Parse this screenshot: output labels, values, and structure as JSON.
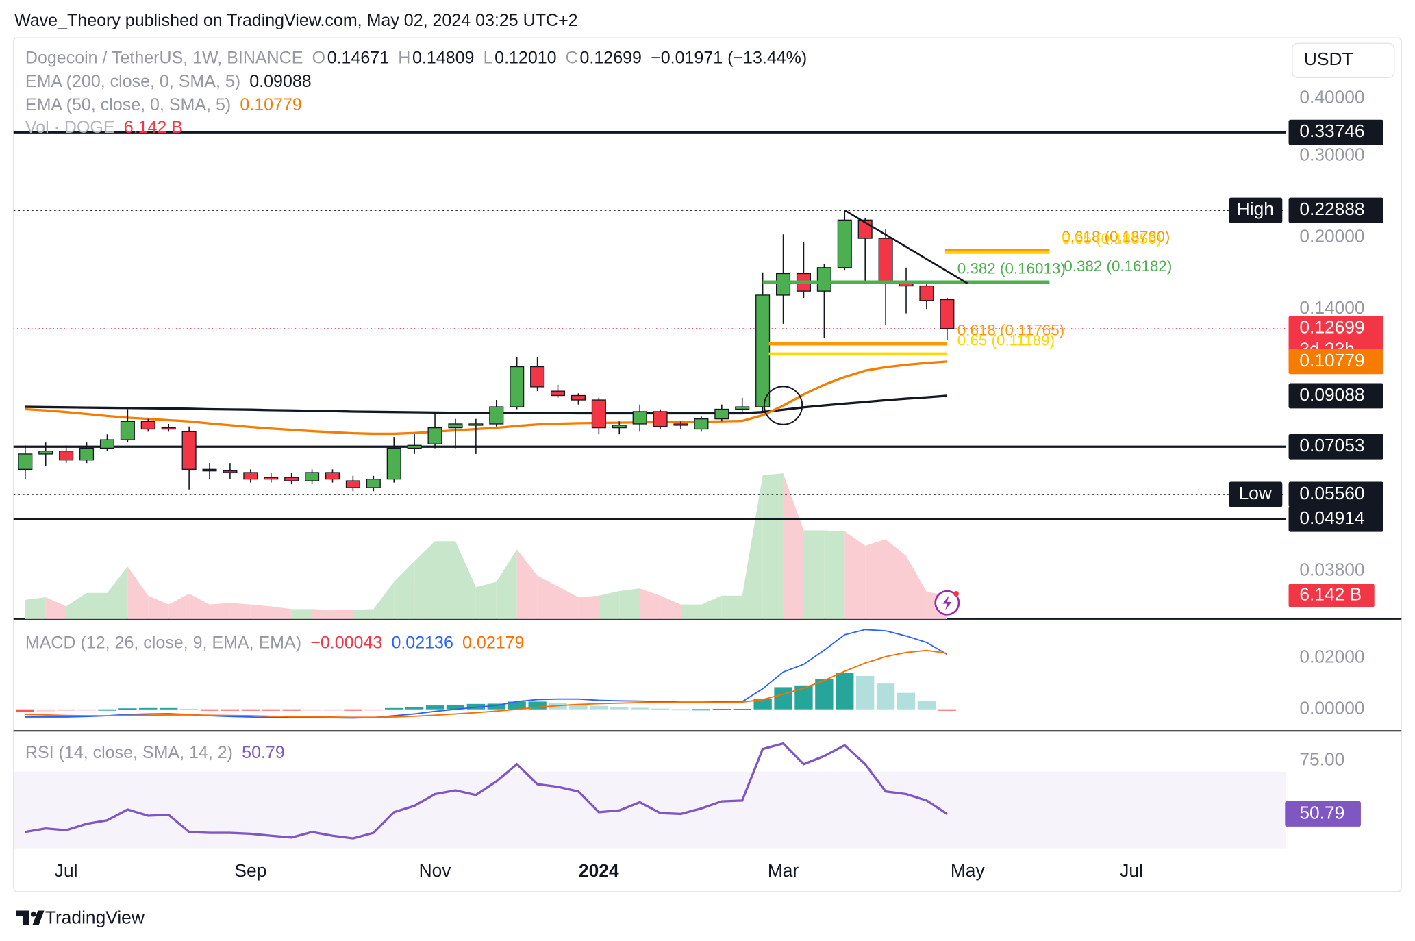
{
  "header": {
    "text": "Wave_Theory published on TradingView.com, May 02, 2024 03:25 UTC+2"
  },
  "footer": {
    "brand": "TradingView"
  },
  "chart_data": {
    "type": "candlestick",
    "log": true,
    "grid": false,
    "legend": {
      "symbol": "Dogecoin / TetherUS, 1W, BINANCE",
      "keys": [
        "O",
        "H",
        "L",
        "C"
      ],
      "readout": [
        "0.14671",
        "0.14809",
        "0.12010",
        "0.12699"
      ],
      "change": "−0.01971 (−13.44%)"
    },
    "currency": "USDT",
    "countdown": "3d 23h",
    "up_color": "#4caf50",
    "down_color": "#f23645",
    "xlim": [
      -0.57,
      61.54
    ],
    "xticks": [
      {
        "value": 2,
        "label": "Jul"
      },
      {
        "value": 11,
        "label": "Sep"
      },
      {
        "value": 20,
        "label": "Nov"
      },
      {
        "value": 28,
        "label": "2024",
        "bold": true
      },
      {
        "value": 37,
        "label": "Mar"
      },
      {
        "value": 46,
        "label": "May"
      },
      {
        "value": 54,
        "label": "Jul"
      }
    ],
    "ylim": [
      0.0299,
      0.54
    ],
    "yticks": [
      {
        "value": 0.4,
        "label": "0.40000"
      },
      {
        "value": 0.3,
        "label": "0.30000"
      },
      {
        "value": 0.2,
        "label": "0.20000"
      },
      {
        "value": 0.14,
        "label": "0.14000"
      },
      {
        "value": 0.038,
        "label": "0.03800"
      }
    ],
    "open": [
      0.063,
      0.068,
      0.069,
      0.066,
      0.07,
      0.073,
      0.08,
      0.0775,
      0.076,
      0.063,
      0.0625,
      0.062,
      0.0605,
      0.0605,
      0.0595,
      0.062,
      0.0595,
      0.0575,
      0.06,
      0.07,
      0.0715,
      0.0775,
      0.0785,
      0.079,
      0.086,
      0.105,
      0.093,
      0.091,
      0.089,
      0.0775,
      0.079,
      0.084,
      0.079,
      0.077,
      0.081,
      0.085,
      0.086,
      0.15,
      0.167,
      0.153,
      0.172,
      0.218,
      0.199,
      0.16,
      0.157,
      0.14671
    ],
    "high": [
      0.071,
      0.072,
      0.071,
      0.072,
      0.075,
      0.085,
      0.081,
      0.079,
      0.078,
      0.065,
      0.065,
      0.063,
      0.062,
      0.062,
      0.063,
      0.063,
      0.061,
      0.061,
      0.074,
      0.075,
      0.083,
      0.081,
      0.081,
      0.089,
      0.11,
      0.11,
      0.096,
      0.092,
      0.09,
      0.08,
      0.087,
      0.085,
      0.08,
      0.082,
      0.087,
      0.09,
      0.168,
      0.203,
      0.195,
      0.175,
      0.2289,
      0.22,
      0.208,
      0.172,
      0.16,
      0.14809
    ],
    "low": [
      0.06,
      0.064,
      0.065,
      0.065,
      0.069,
      0.072,
      0.076,
      0.076,
      0.057,
      0.06,
      0.06,
      0.059,
      0.059,
      0.0585,
      0.0585,
      0.059,
      0.0565,
      0.0565,
      0.059,
      0.068,
      0.07,
      0.07,
      0.068,
      0.078,
      0.085,
      0.093,
      0.09,
      0.087,
      0.075,
      0.075,
      0.076,
      0.077,
      0.077,
      0.076,
      0.08,
      0.084,
      0.084,
      0.13,
      0.148,
      0.121,
      0.17,
      0.16,
      0.129,
      0.137,
      0.14,
      0.1201
    ],
    "close": [
      0.068,
      0.069,
      0.066,
      0.07,
      0.073,
      0.08,
      0.077,
      0.077,
      0.063,
      0.0625,
      0.062,
      0.06,
      0.06,
      0.0595,
      0.062,
      0.06,
      0.0575,
      0.06,
      0.07,
      0.071,
      0.0775,
      0.079,
      0.079,
      0.086,
      0.105,
      0.095,
      0.091,
      0.089,
      0.0775,
      0.0785,
      0.084,
      0.078,
      0.0785,
      0.081,
      0.085,
      0.086,
      0.15,
      0.167,
      0.153,
      0.172,
      0.218,
      0.199,
      0.16,
      0.157,
      0.146,
      0.12699
    ],
    "series": [
      {
        "name": "EMA (200, close, 0, SMA, 5)",
        "color": "#131722",
        "values": [
          0.086,
          0.0859,
          0.0858,
          0.0857,
          0.0856,
          0.0855,
          0.0854,
          0.0853,
          0.0852,
          0.085,
          0.0849,
          0.0848,
          0.0846,
          0.0845,
          0.0843,
          0.0842,
          0.084,
          0.0839,
          0.0838,
          0.0837,
          0.0836,
          0.0835,
          0.0834,
          0.0834,
          0.0834,
          0.0834,
          0.0834,
          0.0833,
          0.0833,
          0.0833,
          0.0833,
          0.0833,
          0.0833,
          0.0833,
          0.0833,
          0.0833,
          0.0838,
          0.0848,
          0.0858,
          0.0866,
          0.0874,
          0.0881,
          0.0889,
          0.0896,
          0.0902,
          0.09088
        ]
      },
      {
        "name": "EMA (50, close, 0, SMA, 5)",
        "color": "#f57c00",
        "values": [
          0.085,
          0.0845,
          0.0838,
          0.083,
          0.0822,
          0.0815,
          0.081,
          0.0805,
          0.08,
          0.0792,
          0.0785,
          0.0778,
          0.0772,
          0.0767,
          0.0762,
          0.0758,
          0.0754,
          0.0752,
          0.0752,
          0.0755,
          0.076,
          0.0765,
          0.077,
          0.0775,
          0.0782,
          0.0788,
          0.0791,
          0.0793,
          0.0794,
          0.0795,
          0.0796,
          0.0797,
          0.0798,
          0.0799,
          0.08,
          0.0802,
          0.0825,
          0.0865,
          0.0915,
          0.096,
          0.0998,
          0.103,
          0.1048,
          0.106,
          0.107,
          0.10779
        ]
      }
    ],
    "volume": {
      "name": "Vol · DOGE",
      "vlim": [
        0,
        40
      ],
      "up_color": "#c8e6c9",
      "down_color": "#facdd2",
      "values": [
        5.0,
        5.7,
        3.3,
        6.8,
        6.8,
        13.7,
        6.1,
        3.8,
        6.6,
        3.8,
        4.2,
        3.8,
        3.3,
        2.6,
        2.6,
        2.4,
        2.4,
        2.6,
        9.7,
        15.1,
        20.3,
        20.3,
        8.3,
        9.7,
        18.2,
        11.3,
        8.5,
        5.7,
        6.1,
        7.3,
        8.0,
        6.1,
        3.8,
        3.8,
        6.1,
        6.1,
        37.5,
        38.0,
        23.1,
        23.1,
        22.9,
        19.1,
        20.8,
        16.5,
        7.1,
        6.142
      ],
      "value_label": "6.142 B"
    },
    "levels": [
      {
        "value": 0.33746,
        "style": "solid"
      },
      {
        "name": "High",
        "value": 0.22888,
        "style": "dotted"
      },
      {
        "value": 0.07053,
        "style": "solid"
      },
      {
        "name": "Low",
        "value": 0.0556,
        "label": "0.05560",
        "style": "dotted"
      },
      {
        "value": 0.04914,
        "style": "solid"
      }
    ],
    "fibs": [
      {
        "text": "0.382 (0.16013)",
        "value": 0.16013,
        "color": "#4caf50",
        "from": 36.0,
        "to": 50.0,
        "text_x": 45.5
      },
      {
        "text": "0.382 (0.16182)",
        "value": 0.16182,
        "color": "#4caf50",
        "text_x": 50.7
      },
      {
        "text": "0.618 (0.18760)",
        "value": 0.1876,
        "color": "#ff9800",
        "from": 44.9,
        "to": 50.0,
        "text_x": 50.6
      },
      {
        "text": "0.65 (0.18556)",
        "value": 0.18556,
        "color": "#ffd600",
        "from": 44.9,
        "to": 50.0,
        "text_x": 50.6
      },
      {
        "text": "0.618 (0.11765)",
        "value": 0.11765,
        "color": "#ff9800",
        "from": 36.3,
        "to": 45.0,
        "text_x": 45.5
      },
      {
        "text": "0.65 (0.11189)",
        "value": 0.11189,
        "color": "#ffd600",
        "from": 36.3,
        "to": 45.0,
        "text_x": 45.5
      }
    ],
    "trendline": {
      "x": [
        40,
        46
      ],
      "values": [
        0.2289,
        0.159
      ]
    },
    "circle": {
      "x": 37,
      "value": 0.0866
    },
    "macd": {
      "name": "MACD (12, 26, close, 9, EMA, EMA)",
      "ylim": [
        -0.0077,
        0.0337
      ],
      "yticks": [
        {
          "value": 0.02,
          "label": "0.02000"
        },
        {
          "value": 0,
          "label": "0.00000"
        }
      ],
      "macd_color": "#2962ff",
      "signal_color": "#ff6d00",
      "hist_label": "−0.00043",
      "macd": [
        -0.003,
        -0.003,
        -0.003,
        -0.0028,
        -0.0025,
        -0.002,
        -0.0018,
        -0.0017,
        -0.002,
        -0.0025,
        -0.0028,
        -0.003,
        -0.0032,
        -0.0033,
        -0.0033,
        -0.0033,
        -0.0034,
        -0.0032,
        -0.0025,
        -0.0018,
        -0.0008,
        0.0,
        0.0008,
        0.0015,
        0.003,
        0.0038,
        0.004,
        0.004,
        0.0035,
        0.0033,
        0.0032,
        0.003,
        0.0028,
        0.0028,
        0.0029,
        0.003,
        0.008,
        0.0145,
        0.0175,
        0.023,
        0.029,
        0.031,
        0.0305,
        0.0285,
        0.026,
        0.02136
      ],
      "signal": [
        -0.002,
        -0.0022,
        -0.0024,
        -0.0025,
        -0.0025,
        -0.0024,
        -0.0023,
        -0.0022,
        -0.0022,
        -0.0023,
        -0.0024,
        -0.0025,
        -0.0027,
        -0.0028,
        -0.0029,
        -0.003,
        -0.0031,
        -0.0031,
        -0.003,
        -0.0027,
        -0.0023,
        -0.0018,
        -0.0013,
        -0.0007,
        0.0,
        0.0008,
        0.0014,
        0.0019,
        0.0022,
        0.0024,
        0.0026,
        0.0027,
        0.0027,
        0.0027,
        0.0027,
        0.0028,
        0.0038,
        0.0059,
        0.0082,
        0.0112,
        0.0148,
        0.018,
        0.0205,
        0.0221,
        0.0229,
        0.02179
      ],
      "hist": [
        -0.001,
        -0.0008,
        -0.0006,
        -0.0003,
        0.0,
        0.0004,
        0.0005,
        0.0005,
        0.0002,
        -0.0002,
        -0.0004,
        -0.0005,
        -0.0005,
        -0.0005,
        -0.0004,
        -0.0003,
        -0.0003,
        -0.0001,
        0.0005,
        0.0009,
        0.0015,
        0.0018,
        0.0021,
        0.0022,
        0.003,
        0.003,
        0.0026,
        0.0021,
        0.0013,
        0.0009,
        0.0006,
        0.0003,
        0.0001,
        0.0001,
        0.0002,
        0.0002,
        0.0042,
        0.0086,
        0.0093,
        0.0118,
        0.0142,
        0.013,
        0.01,
        0.0064,
        0.0031,
        -0.00043
      ]
    },
    "rsi": {
      "name": "RSI (14, close, SMA, 14, 2)",
      "color": "#7e57c2",
      "ylim": [
        35.2,
        87.7
      ],
      "yticks": [
        {
          "value": 75,
          "label": "75.00"
        }
      ],
      "band": [
        30,
        70
      ],
      "values": [
        42.6,
        44.2,
        43.4,
        46.3,
        47.9,
        52.8,
        50.0,
        50.4,
        42.6,
        42.2,
        42.2,
        41.8,
        40.9,
        40.1,
        42.6,
        40.9,
        39.7,
        42.2,
        51.6,
        54.5,
        59.8,
        61.5,
        59.4,
        65.6,
        73.4,
        64.3,
        63.1,
        61.0,
        51.6,
        52.4,
        56.1,
        51.2,
        50.8,
        53.3,
        56.5,
        56.9,
        80.3,
        82.8,
        73.4,
        77.1,
        82.0,
        73.4,
        61.0,
        59.8,
        56.9,
        50.79
      ]
    }
  }
}
